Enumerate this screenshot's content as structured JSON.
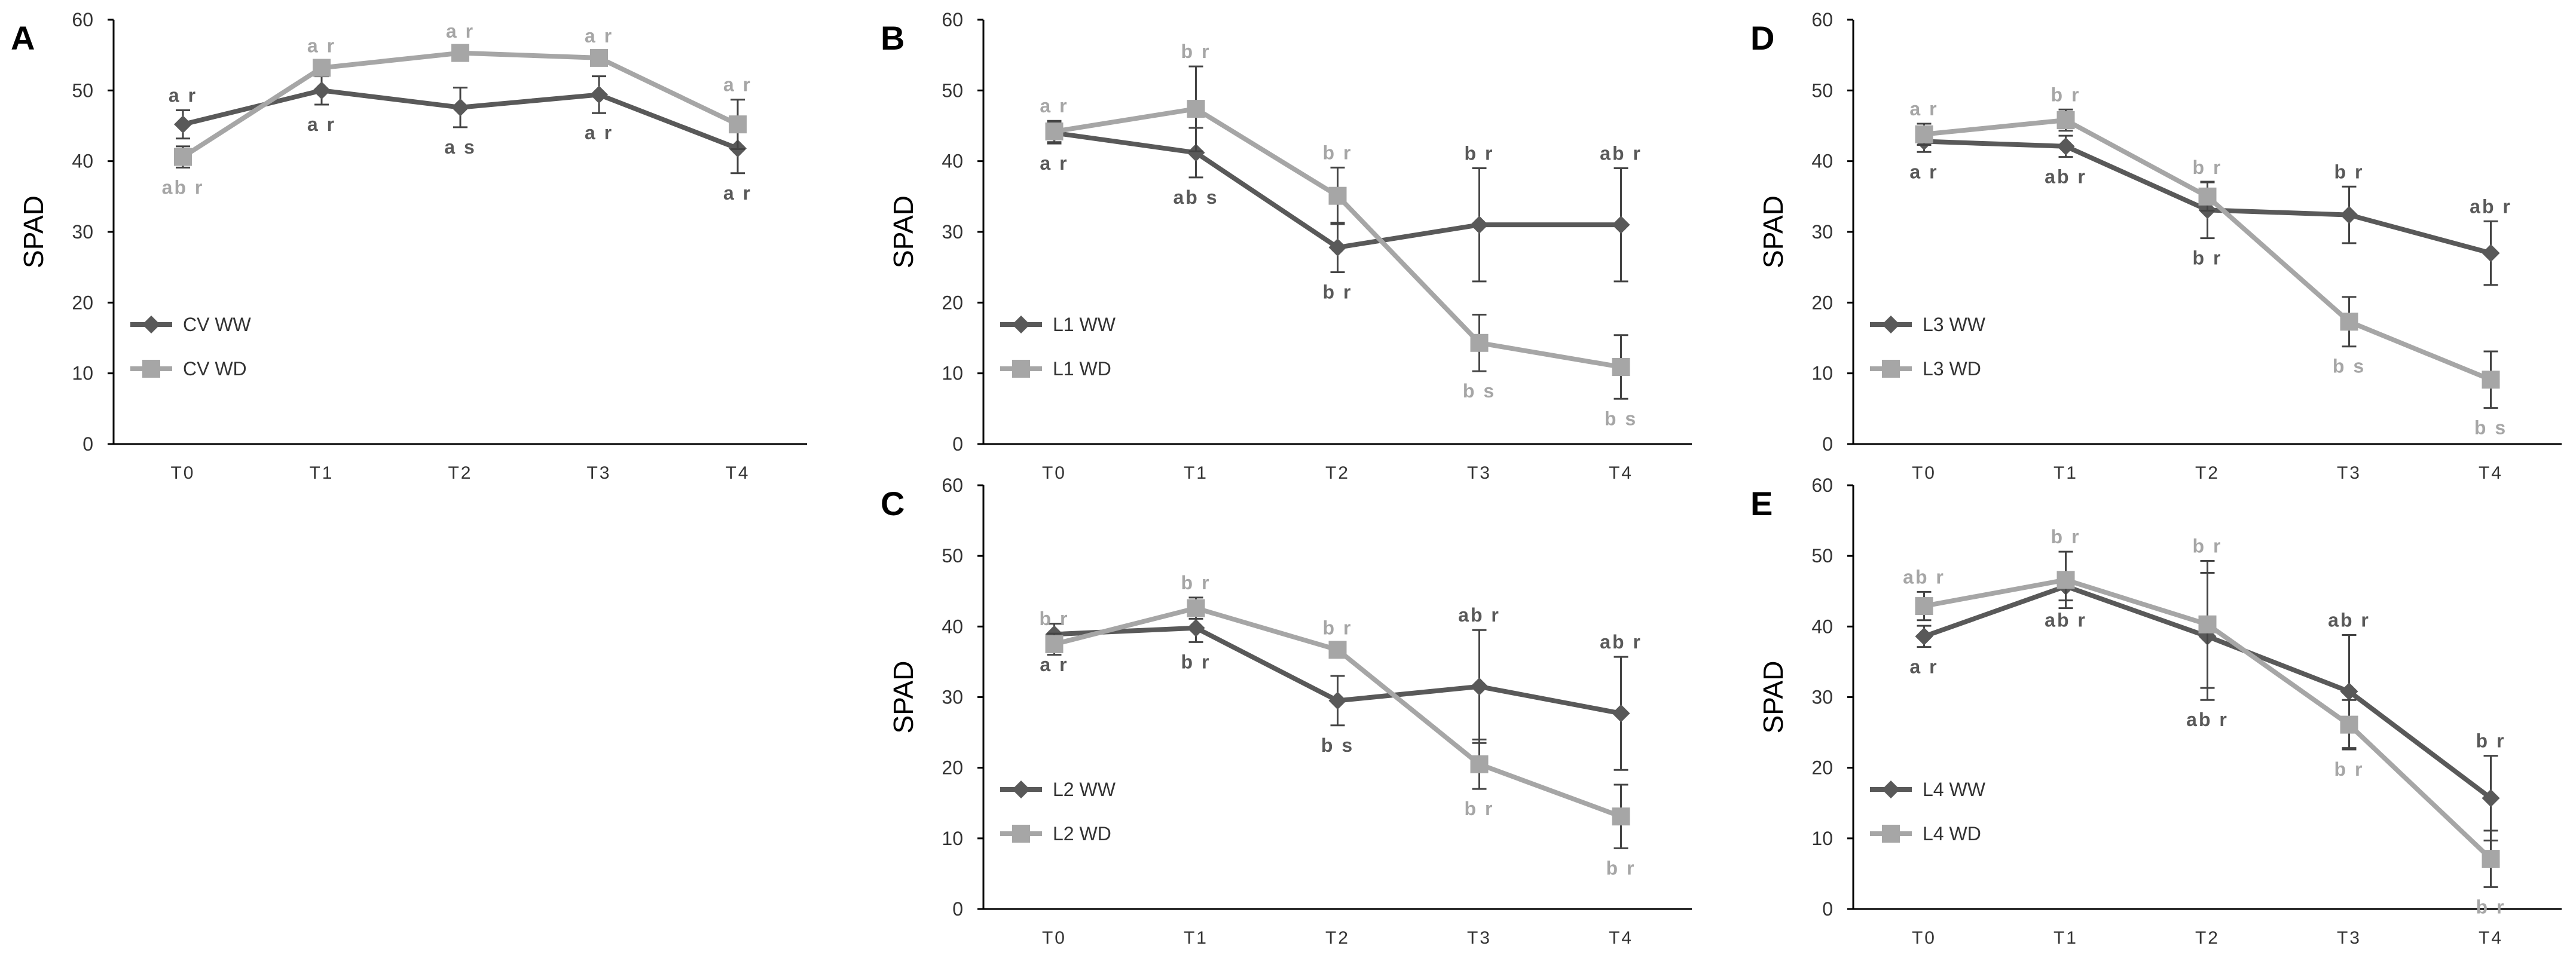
{
  "chart_data": [
    {
      "panel_label": "A",
      "type": "line",
      "categories": [
        "T0",
        "T1",
        "T2",
        "T3",
        "T4"
      ],
      "ylabel": "SPAD",
      "ylim": [
        0,
        60
      ],
      "yticks": [
        0,
        10,
        20,
        30,
        40,
        50,
        60
      ],
      "legend_position": "bottom-left",
      "series": [
        {
          "name": "CV WW",
          "color": "#595959",
          "marker": "diamond",
          "values": [
            45.2,
            50.0,
            47.6,
            49.4,
            41.8
          ],
          "errors": [
            2.0,
            2.0,
            2.8,
            2.6,
            3.5
          ],
          "labels": [
            "a r",
            "a r",
            "a s",
            "a r",
            "a r"
          ],
          "label_side": [
            "above",
            "below",
            "below",
            "below",
            "below"
          ]
        },
        {
          "name": "CV WD",
          "color": "#a6a6a6",
          "marker": "square",
          "values": [
            40.6,
            53.2,
            55.3,
            54.6,
            45.2
          ],
          "errors": [
            1.5,
            1.0,
            1.0,
            1.0,
            3.5
          ],
          "labels": [
            "ab r",
            "a r",
            "a r",
            "a r",
            "a r"
          ],
          "label_side": [
            "below",
            "above",
            "above",
            "above",
            "above"
          ]
        }
      ]
    },
    {
      "panel_label": "B",
      "type": "line",
      "categories": [
        "T0",
        "T1",
        "T2",
        "T3",
        "T4"
      ],
      "ylabel": "SPAD",
      "ylim": [
        0,
        60
      ],
      "yticks": [
        0,
        10,
        20,
        30,
        40,
        50,
        60
      ],
      "legend_position": "bottom-left",
      "series": [
        {
          "name": "L1 WW",
          "color": "#595959",
          "marker": "diamond",
          "values": [
            44.0,
            41.2,
            27.8,
            31.0,
            31.0
          ],
          "errors": [
            1.5,
            3.5,
            3.5,
            8.0,
            8.0
          ],
          "labels": [
            "a r",
            "ab s",
            "b r",
            "b r",
            "ab r"
          ],
          "label_side": [
            "below",
            "below",
            "below",
            "above",
            "above"
          ]
        },
        {
          "name": "L1 WD",
          "color": "#a6a6a6",
          "marker": "square",
          "values": [
            44.2,
            47.4,
            35.1,
            14.3,
            10.9
          ],
          "errors": [
            1.5,
            6.0,
            4.0,
            4.0,
            4.5
          ],
          "labels": [
            "a r",
            "b r",
            "b r",
            "b s",
            "b s"
          ],
          "label_side": [
            "above",
            "above",
            "above",
            "below",
            "below"
          ]
        }
      ]
    },
    {
      "panel_label": "C",
      "type": "line",
      "categories": [
        "T0",
        "T1",
        "T2",
        "T3",
        "T4"
      ],
      "ylabel": "SPAD",
      "ylim": [
        0,
        60
      ],
      "yticks": [
        0,
        10,
        20,
        30,
        40,
        50,
        60
      ],
      "legend_position": "bottom-left",
      "series": [
        {
          "name": "L2 WW",
          "color": "#595959",
          "marker": "diamond",
          "values": [
            38.9,
            39.8,
            29.5,
            31.5,
            27.7
          ],
          "errors": [
            1.5,
            2.0,
            3.5,
            8.0,
            8.0
          ],
          "labels": [
            "a r",
            "b r",
            "b s",
            "ab r",
            "ab r"
          ],
          "label_side": [
            "below",
            "below",
            "below",
            "above",
            "above"
          ]
        },
        {
          "name": "L2 WD",
          "color": "#a6a6a6",
          "marker": "square",
          "values": [
            37.5,
            42.6,
            36.7,
            20.5,
            13.1
          ],
          "errors": [
            1.5,
            1.5,
            1.0,
            3.5,
            4.5
          ],
          "labels": [
            "b r",
            "b r",
            "b r",
            "b r",
            "b r"
          ],
          "label_side": [
            "above",
            "above",
            "above",
            "below",
            "below"
          ]
        }
      ]
    },
    {
      "panel_label": "D",
      "type": "line",
      "categories": [
        "T0",
        "T1",
        "T2",
        "T3",
        "T4"
      ],
      "ylabel": "SPAD",
      "ylim": [
        0,
        60
      ],
      "yticks": [
        0,
        10,
        20,
        30,
        40,
        50,
        60
      ],
      "legend_position": "bottom-left",
      "series": [
        {
          "name": "L3 WW",
          "color": "#595959",
          "marker": "diamond",
          "values": [
            42.8,
            42.1,
            33.1,
            32.4,
            27.0
          ],
          "errors": [
            1.5,
            1.5,
            4.0,
            4.0,
            4.5
          ],
          "labels": [
            "a r",
            "ab r",
            "b r",
            "b r",
            "ab r"
          ],
          "label_side": [
            "below",
            "below",
            "below",
            "above",
            "above"
          ]
        },
        {
          "name": "L3 WD",
          "color": "#a6a6a6",
          "marker": "square",
          "values": [
            43.8,
            45.8,
            35.0,
            17.3,
            9.1
          ],
          "errors": [
            1.5,
            1.5,
            2.0,
            3.5,
            4.0
          ],
          "labels": [
            "a r",
            "b r",
            "b r",
            "b s",
            "b s"
          ],
          "label_side": [
            "above",
            "above",
            "above",
            "below",
            "below"
          ]
        }
      ]
    },
    {
      "panel_label": "E",
      "type": "line",
      "categories": [
        "T0",
        "T1",
        "T2",
        "T3",
        "T4"
      ],
      "ylabel": "SPAD",
      "ylim": [
        0,
        60
      ],
      "yticks": [
        0,
        10,
        20,
        30,
        40,
        50,
        60
      ],
      "legend_position": "bottom-left",
      "series": [
        {
          "name": "L4 WW",
          "color": "#595959",
          "marker": "diamond",
          "values": [
            38.6,
            45.7,
            38.6,
            30.8,
            15.7
          ],
          "errors": [
            1.5,
            2.0,
            9.0,
            8.0,
            6.0
          ],
          "labels": [
            "a r",
            "ab r",
            "ab r",
            "ab r",
            "b r"
          ],
          "label_side": [
            "below",
            "below",
            "below",
            "above",
            "above"
          ]
        },
        {
          "name": "L4 WD",
          "color": "#a6a6a6",
          "marker": "square",
          "values": [
            42.9,
            46.6,
            40.3,
            26.1,
            7.1
          ],
          "errors": [
            2.0,
            4.0,
            9.0,
            3.5,
            4.0
          ],
          "labels": [
            "ab r",
            "b r",
            "b r",
            "b r",
            "b r"
          ],
          "label_side": [
            "above",
            "above",
            "above",
            "below",
            "below"
          ]
        }
      ]
    }
  ]
}
